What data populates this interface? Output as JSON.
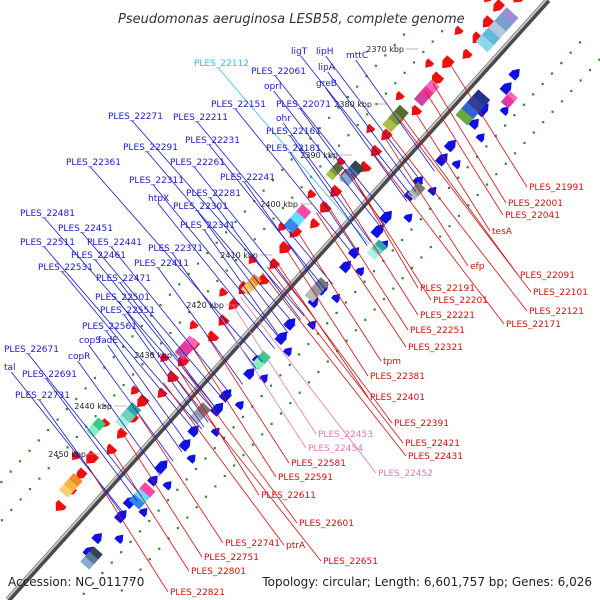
{
  "title": "Pseudomonas aeruginosa LESB58, complete genome",
  "accession": "Accession: NC_011770",
  "topology": "Topology: circular; Length: 6,601,757 bp; Genes: 6,026",
  "colors": {
    "left_label": "#1a1acc",
    "right_label": "#cc1111",
    "pink_label": "#e07ab0",
    "cyan_label": "#33bbdd",
    "backbone": "#8a8a8a"
  },
  "ticks": [
    {
      "label": "2370 kbp"
    },
    {
      "label": "2380 kbp"
    },
    {
      "label": "2390 kbp"
    },
    {
      "label": "2400 kbp"
    },
    {
      "label": "2410 kbp"
    },
    {
      "label": "2420 kbp"
    },
    {
      "label": "2430 kbp"
    },
    {
      "label": "2440 kbp"
    },
    {
      "label": "2450 kbp"
    }
  ],
  "left_labels": [
    {
      "text": "mttC"
    },
    {
      "text": "ligT"
    },
    {
      "text": "lipH"
    },
    {
      "text": "lipA"
    },
    {
      "text": "PLES_22112",
      "tone": "cyan"
    },
    {
      "text": "PLES_22061"
    },
    {
      "text": "greB"
    },
    {
      "text": "oprI"
    },
    {
      "text": "PLES_22151"
    },
    {
      "text": "PLES_22071"
    },
    {
      "text": "ohr"
    },
    {
      "text": "PLES_22271"
    },
    {
      "text": "PLES_22211"
    },
    {
      "text": "PLES_22161"
    },
    {
      "text": "PLES_22231"
    },
    {
      "text": "PLES_22181"
    },
    {
      "text": "PLES_22291"
    },
    {
      "text": "PLES_22361"
    },
    {
      "text": "PLES_22261"
    },
    {
      "text": "PLES_22241"
    },
    {
      "text": "PLES_22311"
    },
    {
      "text": "htpX"
    },
    {
      "text": "PLES_22281"
    },
    {
      "text": "PLES_22301"
    },
    {
      "text": "PLES_22481"
    },
    {
      "text": "PLES_22341"
    },
    {
      "text": "PLES_22451"
    },
    {
      "text": "PLES_22511"
    },
    {
      "text": "PLES_22441"
    },
    {
      "text": "PLES_22371"
    },
    {
      "text": "PLES_22461"
    },
    {
      "text": "PLES_22531"
    },
    {
      "text": "PLES_22411"
    },
    {
      "text": "PLES_22471"
    },
    {
      "text": "PLES_22501"
    },
    {
      "text": "PLES_22551"
    },
    {
      "text": "PLES_22561"
    },
    {
      "text": "copS"
    },
    {
      "text": "fadE"
    },
    {
      "text": "PLES_22671"
    },
    {
      "text": "copR"
    },
    {
      "text": "tal"
    },
    {
      "text": "PLES_22691"
    },
    {
      "text": "PLES_22731"
    }
  ],
  "right_labels": [
    {
      "text": "PLES_21991"
    },
    {
      "text": "PLES_22001"
    },
    {
      "text": "PLES_22041"
    },
    {
      "text": "tesA"
    },
    {
      "text": "efp"
    },
    {
      "text": "PLES_22091"
    },
    {
      "text": "PLES_22101"
    },
    {
      "text": "PLES_22191"
    },
    {
      "text": "PLES_22121"
    },
    {
      "text": "PLES_22201"
    },
    {
      "text": "PLES_22171"
    },
    {
      "text": "PLES_22221"
    },
    {
      "text": "PLES_22251"
    },
    {
      "text": "PLES_22321"
    },
    {
      "text": "tpm"
    },
    {
      "text": "PLES_22381"
    },
    {
      "text": "PLES_22401"
    },
    {
      "text": "PLES_22391"
    },
    {
      "text": "PLES_22453",
      "tone": "pink"
    },
    {
      "text": "PLES_22421"
    },
    {
      "text": "PLES_22454",
      "tone": "pink"
    },
    {
      "text": "PLES_22431"
    },
    {
      "text": "PLES_22581"
    },
    {
      "text": "PLES_22452",
      "tone": "pink"
    },
    {
      "text": "PLES_22591"
    },
    {
      "text": "PLES_22611"
    },
    {
      "text": "PLES_22601"
    },
    {
      "text": "ptrA"
    },
    {
      "text": "PLES_22741"
    },
    {
      "text": "PLES_22651"
    },
    {
      "text": "PLES_22751"
    },
    {
      "text": "PLES_22801"
    },
    {
      "text": "PLES_22821"
    }
  ]
}
